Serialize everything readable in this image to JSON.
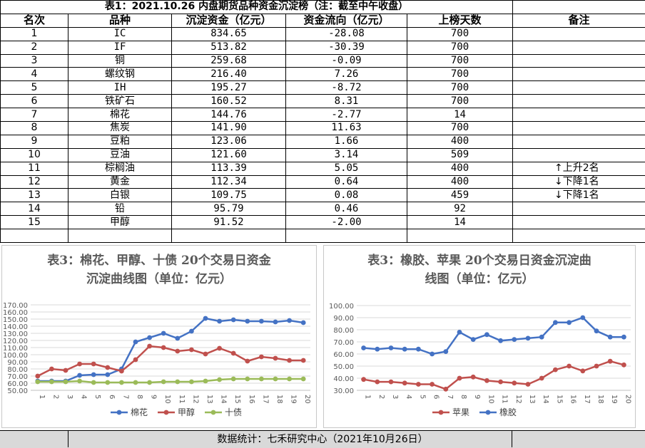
{
  "table": {
    "title": "表1：2021.10.26 内盘期货品种资金沉淀榜（注：截至中午收盘）",
    "headers": [
      "名次",
      "品种",
      "沉淀资金（亿元）",
      "资金流向（亿元）",
      "上榜天数",
      "备注"
    ],
    "rows": [
      {
        "rank": "1",
        "name": "IC",
        "fund": "834.65",
        "flow": "-28.08",
        "days": "700",
        "note": ""
      },
      {
        "rank": "2",
        "name": "IF",
        "fund": "513.82",
        "flow": "-30.39",
        "days": "700",
        "note": ""
      },
      {
        "rank": "3",
        "name": "铜",
        "fund": "259.68",
        "flow": "-0.09",
        "days": "700",
        "note": ""
      },
      {
        "rank": "4",
        "name": "螺纹钢",
        "fund": "216.40",
        "flow": "7.26",
        "days": "700",
        "note": ""
      },
      {
        "rank": "5",
        "name": "IH",
        "fund": "195.27",
        "flow": "-8.72",
        "days": "700",
        "note": ""
      },
      {
        "rank": "6",
        "name": "铁矿石",
        "fund": "160.52",
        "flow": "8.31",
        "days": "700",
        "note": ""
      },
      {
        "rank": "7",
        "name": "棉花",
        "fund": "144.76",
        "flow": "-2.77",
        "days": "14",
        "note": ""
      },
      {
        "rank": "8",
        "name": "焦炭",
        "fund": "141.90",
        "flow": "11.63",
        "days": "700",
        "note": ""
      },
      {
        "rank": "9",
        "name": "豆粕",
        "fund": "123.06",
        "flow": "1.66",
        "days": "400",
        "note": ""
      },
      {
        "rank": "10",
        "name": "豆油",
        "fund": "121.60",
        "flow": "3.14",
        "days": "509",
        "note": ""
      },
      {
        "rank": "11",
        "name": "棕榈油",
        "fund": "113.39",
        "flow": "5.05",
        "days": "400",
        "note": "上升2名"
      },
      {
        "rank": "12",
        "name": "黄金",
        "fund": "112.34",
        "flow": "0.64",
        "days": "400",
        "note": "下降1名"
      },
      {
        "rank": "13",
        "name": "白银",
        "fund": "109.75",
        "flow": "0.08",
        "days": "459",
        "note": "下降1名"
      },
      {
        "rank": "14",
        "name": "铅",
        "fund": "95.79",
        "flow": "0.46",
        "days": "92",
        "note": ""
      },
      {
        "rank": "15",
        "name": "甲醇",
        "fund": "91.52",
        "flow": "-2.00",
        "days": "14",
        "note": ""
      }
    ],
    "arrow_up": "↑",
    "arrow_down": "↓"
  },
  "footer": {
    "text": "数据统计：七禾研究中心（2021年10月26日）"
  },
  "chart_data": [
    {
      "type": "line",
      "title_line1": "表3：棉花、甲醇、十债 20个交易日资金",
      "title_line2": "沉淀曲线图（单位：亿元）",
      "x": [
        "1",
        "2",
        "3",
        "4",
        "5",
        "6",
        "7",
        "8",
        "9",
        "10",
        "11",
        "12",
        "13",
        "14",
        "15",
        "16",
        "17",
        "18",
        "19",
        "20"
      ],
      "y_ticks": [
        "50.00",
        "60.00",
        "70.00",
        "80.00",
        "90.00",
        "100.00",
        "110.00",
        "120.00",
        "130.00",
        "140.00",
        "150.00",
        "160.00",
        "170.00"
      ],
      "ylim": [
        50,
        170
      ],
      "legend_position": "bottom",
      "series": [
        {
          "name": "棉花",
          "color": "#4472c4",
          "values": [
            63,
            63,
            63,
            71,
            72,
            72,
            80,
            118,
            124,
            130,
            123,
            133,
            151,
            147,
            149,
            147,
            147,
            146,
            148,
            145
          ]
        },
        {
          "name": "甲醇",
          "color": "#c0504d",
          "values": [
            70,
            80,
            78,
            87,
            87,
            82,
            77,
            93,
            112,
            110,
            105,
            107,
            101,
            109,
            102,
            91,
            97,
            95,
            92,
            92
          ]
        },
        {
          "name": "十债",
          "color": "#9bbb59",
          "values": [
            62,
            62,
            62,
            63,
            61,
            61,
            61,
            61,
            61,
            62,
            62,
            62,
            63,
            65,
            66,
            66,
            66,
            66,
            66,
            66
          ]
        }
      ]
    },
    {
      "type": "line",
      "title_line1": "表3：橡胶、苹果 20个交易日资金沉淀曲",
      "title_line2": "线图（单位：亿元）",
      "x": [
        "1",
        "2",
        "3",
        "4",
        "5",
        "6",
        "7",
        "8",
        "9",
        "10",
        "11",
        "12",
        "13",
        "14",
        "15",
        "16",
        "17",
        "18",
        "19",
        "20"
      ],
      "y_ticks": [
        "30.00",
        "40.00",
        "50.00",
        "60.00",
        "70.00",
        "80.00",
        "90.00",
        "100.00"
      ],
      "ylim": [
        30,
        100
      ],
      "legend_position": "bottom",
      "series": [
        {
          "name": "苹果",
          "color": "#c0504d",
          "values": [
            39,
            37,
            37,
            36,
            35,
            35,
            31,
            40,
            41,
            38,
            37,
            36,
            35,
            40,
            47,
            50,
            46,
            50,
            54,
            51
          ]
        },
        {
          "name": "橡胶",
          "color": "#4472c4",
          "values": [
            65,
            64,
            65,
            64,
            64,
            60,
            62,
            78,
            72,
            76,
            71,
            72,
            73,
            74,
            86,
            86,
            90,
            79,
            74,
            74
          ]
        }
      ]
    }
  ]
}
